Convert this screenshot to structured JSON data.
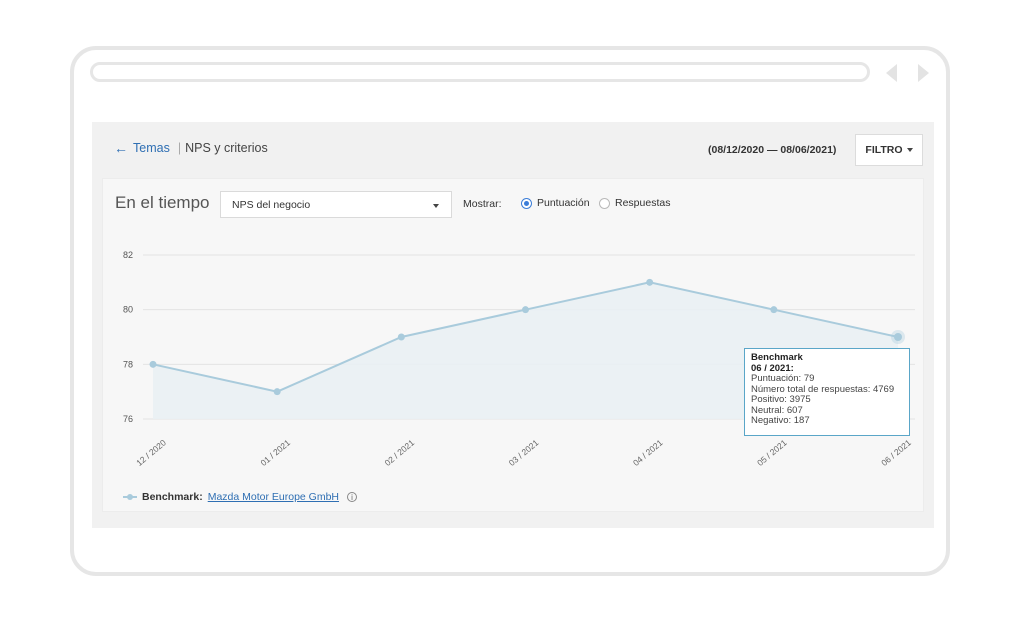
{
  "breadcrumb": {
    "back_label": "Temas",
    "current": "NPS y criterios"
  },
  "date_range": "(08/12/2020 — 08/06/2021)",
  "filter_label": "FILTRO",
  "section_title": "En el tiempo",
  "metric_select": {
    "value": "NPS del negocio"
  },
  "show": {
    "label": "Mostrar:",
    "options": [
      "Puntuación",
      "Respuestas"
    ],
    "selected": "Puntuación"
  },
  "colors": {
    "line": "#a9cbdc",
    "area": "#e9eff3",
    "accent": "#3b7dd8",
    "link": "#2f6fb3"
  },
  "chart_data": {
    "type": "area",
    "categories": [
      "12 / 2020",
      "01 / 2021",
      "02 / 2021",
      "03 / 2021",
      "04 / 2021",
      "05 / 2021",
      "06 / 2021"
    ],
    "series": [
      {
        "name": "Benchmark",
        "values": [
          78,
          77,
          79,
          80,
          81,
          80,
          79
        ]
      }
    ],
    "yticks": [
      76,
      78,
      80,
      82
    ],
    "ylim": [
      76,
      82
    ],
    "grid": true,
    "legend": "bottom-left",
    "legend_label": "Benchmark:",
    "legend_link": "Mazda Motor Europe GmbH"
  },
  "tooltip": {
    "title": "Benchmark",
    "period": "06 / 2021:",
    "lines": [
      "Puntuación: 79",
      "Número total de respuestas: 4769",
      "Positivo: 3975",
      "Neutral: 607",
      "Negativo: 187"
    ]
  }
}
